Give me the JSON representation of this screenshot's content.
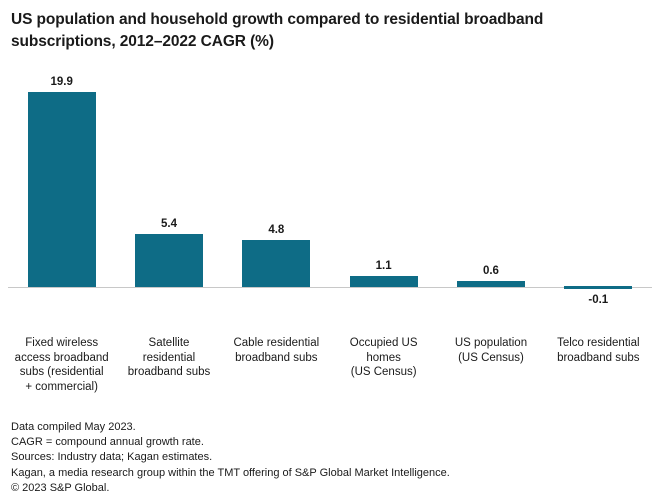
{
  "header": {
    "title": "US population and household growth compared to residential broadband\nsubscriptions, 2012–2022 CAGR (%)"
  },
  "chart_data": {
    "type": "bar",
    "title": "US population and household growth compared to residential broadband subscriptions, 2012–2022 CAGR (%)",
    "categories": [
      "Fixed wireless\naccess broadband\nsubs (residential\n+ commercial)",
      "Satellite\nresidential\nbroadband subs",
      "Cable residential\nbroadband subs",
      "Occupied US\nhomes\n(US Census)",
      "US population\n(US Census)",
      "Telco residential\nbroadband subs"
    ],
    "values": [
      19.9,
      5.4,
      4.8,
      1.1,
      0.6,
      -0.1
    ],
    "unit": "%",
    "xlabel": "",
    "ylabel": "",
    "ylim": [
      -0.5,
      21
    ],
    "grid": false,
    "legend": "none",
    "data_labels_visible": true,
    "bar_color": "#0e6c86",
    "axis_color": "#c8c8c8",
    "text_color": "#1a1a1a"
  },
  "footer": {
    "lines": [
      "Data compiled May 2023.",
      "CAGR = compound annual growth rate.",
      "Sources: Industry data; Kagan estimates.",
      "Kagan, a media research group within the TMT offering of S&P Global Market Intelligence.",
      "© 2023 S&P Global."
    ]
  }
}
